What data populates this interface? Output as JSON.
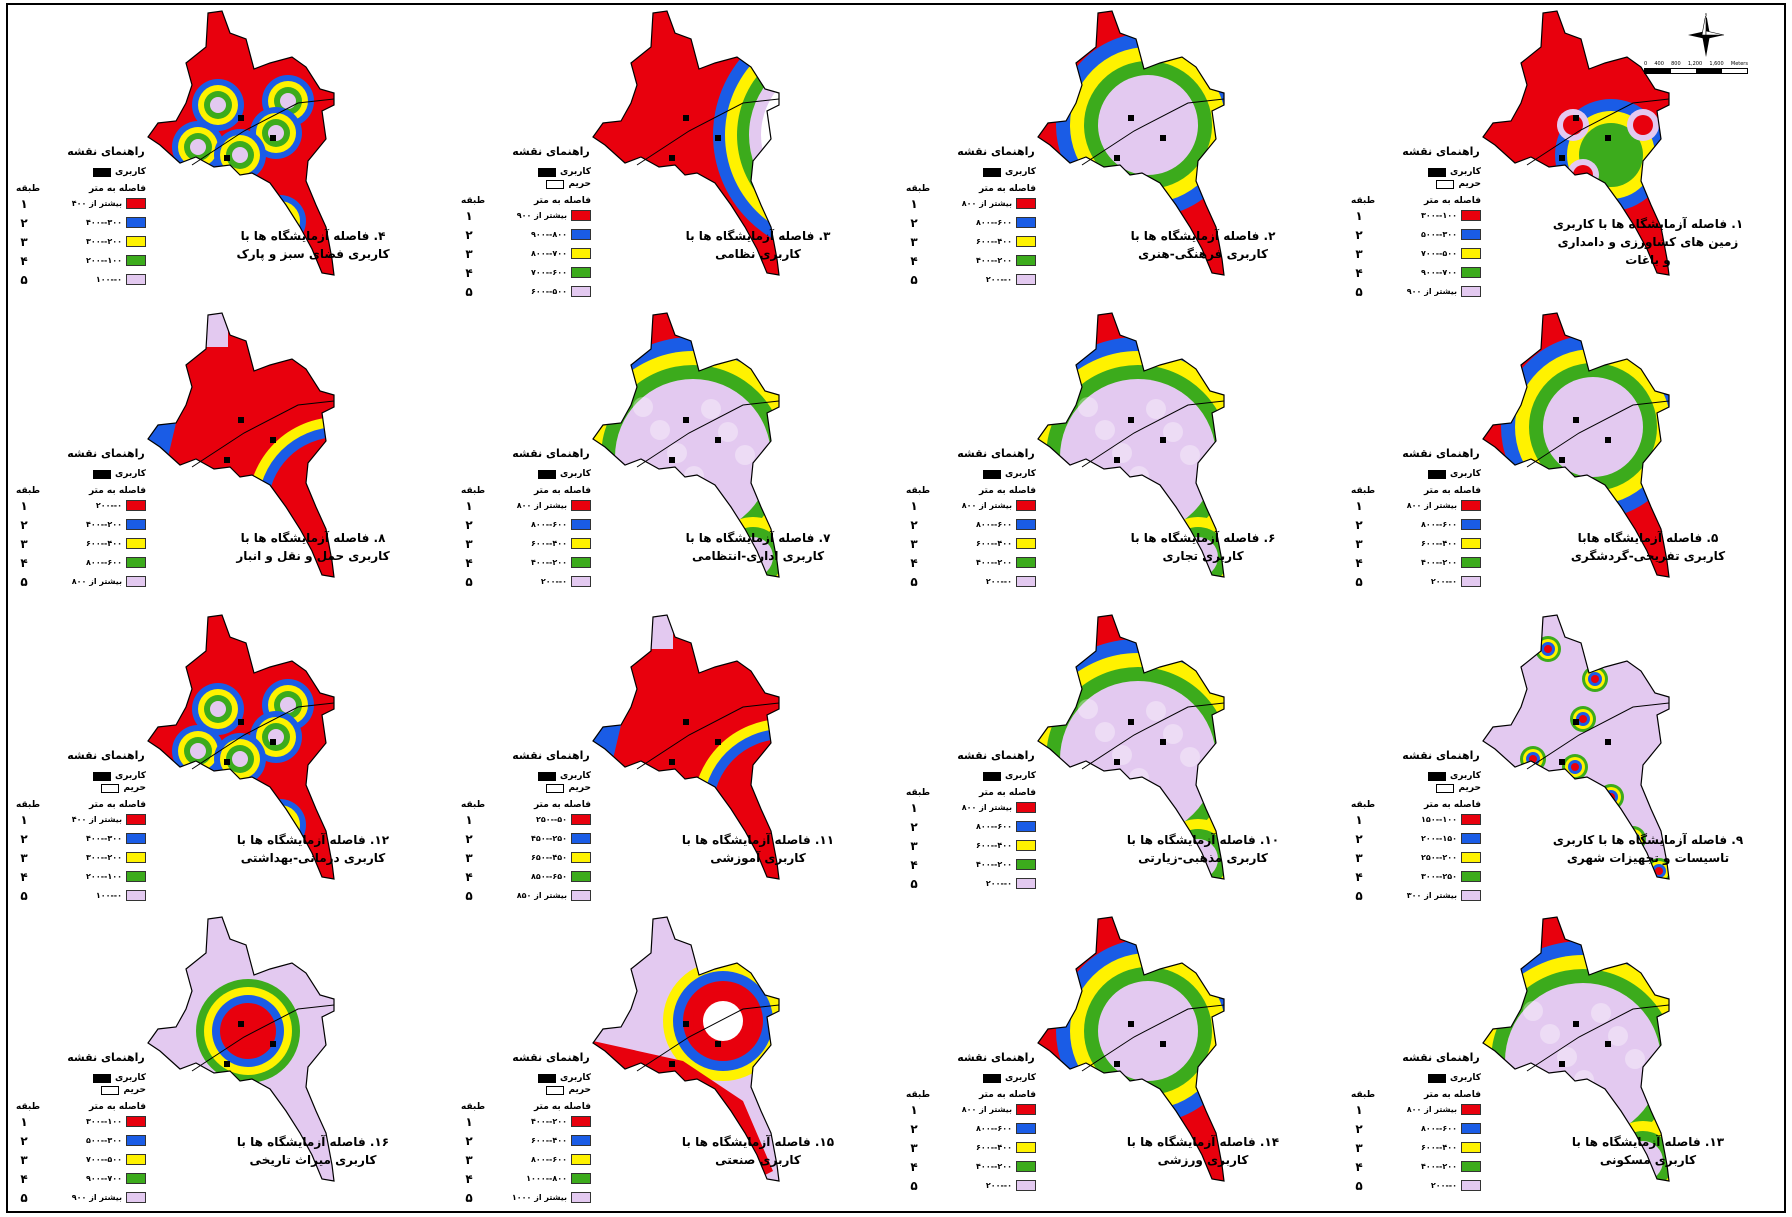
{
  "colors": {
    "class1": "#e8000d",
    "class2": "#1a5ce6",
    "class3": "#fff200",
    "class4": "#3cab1c",
    "class5": "#e3c9f0",
    "landuse": "#000000"
  },
  "legend_common": {
    "title": "راهنمای نقشه",
    "landuse_label": "کاربری",
    "buffer_label": "حریم",
    "distance_header": "فاصله به متر",
    "class_header": "طبقه",
    "class_numbers": [
      "۱",
      "۲",
      "۳",
      "۴",
      "۵"
    ]
  },
  "scale_bar": {
    "labels": [
      "0",
      "400",
      "800",
      "1,200",
      "1,600"
    ],
    "unit": "Meters"
  },
  "panels": [
    {
      "id": 1,
      "caption": [
        "۱. فاصله آزمایشگاه ها با کاربری",
        "زمین های کشاورزی و دامداری",
        "و باغات"
      ],
      "has_buffer": true,
      "ranges": [
        "۱۰۰--۳۰۰",
        "۳۰۰--۵۰۰",
        "۵۰۰--۷۰۰",
        "۷۰۰--۹۰۰",
        "بیشتر از ۹۰۰"
      ],
      "pattern": "far-red"
    },
    {
      "id": 2,
      "caption": [
        "۲. فاصله آزمایشگاه ها با",
        "کاربری فرهنگی-هنری"
      ],
      "has_buffer": false,
      "ranges": [
        "بیشتر از ۸۰۰",
        "۶۰۰--۸۰۰",
        "۴۰۰--۶۰۰",
        "۲۰۰--۴۰۰",
        "۰--۲۰۰"
      ],
      "pattern": "center-rings"
    },
    {
      "id": 3,
      "caption": [
        "۳. فاصله آزمایشگاه ها با",
        "کاربری نظامی"
      ],
      "has_buffer": true,
      "ranges": [
        "بیشتر از ۹۰۰",
        "۸۰۰--۹۰۰",
        "۷۰۰--۸۰۰",
        "۶۰۰--۷۰۰",
        "۵۰۰--۶۰۰"
      ],
      "pattern": "edge-rings"
    },
    {
      "id": 4,
      "caption": [
        "۴. فاصله آزمایشگاه ها با",
        "کاربری فضای سبز و پارک"
      ],
      "has_buffer": false,
      "ranges": [
        "بیشتر از ۴۰۰",
        "۳۰۰--۴۰۰",
        "۲۰۰--۳۰۰",
        "۱۰۰--۲۰۰",
        "۰--۱۰۰"
      ],
      "pattern": "multi-rings"
    },
    {
      "id": 5,
      "caption": [
        "۵. فاصله آزمایشگاه هابا",
        "کاربری تفریحی-گردشگری"
      ],
      "has_buffer": false,
      "ranges": [
        "بیشتر از ۸۰۰",
        "۶۰۰--۸۰۰",
        "۴۰۰--۶۰۰",
        "۲۰۰--۴۰۰",
        "۰--۲۰۰"
      ],
      "pattern": "center-rings"
    },
    {
      "id": 6,
      "caption": [
        "۶. فاصله آزمایشگاه ها با",
        "کاربری تجاری"
      ],
      "has_buffer": false,
      "ranges": [
        "بیشتر از ۸۰۰",
        "۶۰۰--۸۰۰",
        "۴۰۰--۶۰۰",
        "۲۰۰--۴۰۰",
        "۰--۲۰۰"
      ],
      "pattern": "mostly-pink"
    },
    {
      "id": 7,
      "caption": [
        "۷. فاصله آزمایشگاه ها با",
        "کاربری اداری-انتظامی"
      ],
      "has_buffer": false,
      "ranges": [
        "بیشتر از ۸۰۰",
        "۶۰۰--۸۰۰",
        "۴۰۰--۶۰۰",
        "۲۰۰--۴۰۰",
        "۰--۲۰۰"
      ],
      "pattern": "mostly-pink"
    },
    {
      "id": 8,
      "caption": [
        "۸. فاصله آزمایشگاه ها با",
        "کاربری حمل و نقل و انبار"
      ],
      "has_buffer": false,
      "ranges": [
        "۰--۲۰۰",
        "۲۰۰--۴۰۰",
        "۴۰۰--۶۰۰",
        "۶۰۰--۸۰۰",
        "بیشتر از ۸۰۰"
      ],
      "pattern": "mostly-red"
    },
    {
      "id": 9,
      "caption": [
        "۹. فاصله آزمایشگاه ها با کاربری",
        "تاسیسات و تجهیزات شهری"
      ],
      "has_buffer": true,
      "ranges": [
        "۱۰۰--۱۵۰",
        "۱۵۰--۲۰۰",
        "۲۰۰--۲۵۰",
        "۲۵۰--۳۰۰",
        "بیشتر از ۳۰۰"
      ],
      "pattern": "dots-rings"
    },
    {
      "id": 10,
      "caption": [
        "۱۰. فاصله آزمایشگاه ها با",
        "کاربری مذهبی-زیارتی"
      ],
      "has_buffer": false,
      "ranges": [
        "بیشتر از ۸۰۰",
        "۶۰۰--۸۰۰",
        "۴۰۰--۶۰۰",
        "۲۰۰--۴۰۰",
        "۰--۲۰۰"
      ],
      "pattern": "mostly-pink"
    },
    {
      "id": 11,
      "caption": [
        "۱۱. فاصله آزمایشگاه ها با",
        "کاربری آموزشی"
      ],
      "has_buffer": true,
      "ranges": [
        "۵۰--۲۵۰",
        "۲۵۰--۴۵۰",
        "۴۵۰--۶۵۰",
        "۶۵۰--۸۵۰",
        "بیشتر از ۸۵۰"
      ],
      "pattern": "mostly-red"
    },
    {
      "id": 12,
      "caption": [
        "۱۲. فاصله آزمایشگاه ها با",
        "کاربری درمانی-بهداشتی"
      ],
      "has_buffer": true,
      "ranges": [
        "بیشتر از ۴۰۰",
        "۳۰۰--۴۰۰",
        "۲۰۰--۳۰۰",
        "۱۰۰--۲۰۰",
        "۰--۱۰۰"
      ],
      "pattern": "multi-rings"
    },
    {
      "id": 13,
      "caption": [
        "۱۳. فاصله آزمایشگاه ها با",
        "کاربری مسکونی"
      ],
      "has_buffer": false,
      "ranges": [
        "بیشتر از ۸۰۰",
        "۶۰۰--۸۰۰",
        "۴۰۰--۶۰۰",
        "۲۰۰--۴۰۰",
        "۰--۲۰۰"
      ],
      "pattern": "mostly-pink"
    },
    {
      "id": 14,
      "caption": [
        "۱۴. فاصله آزمایشگاه ها با",
        "کاربری ورزشی"
      ],
      "has_buffer": false,
      "ranges": [
        "بیشتر از ۸۰۰",
        "۶۰۰--۸۰۰",
        "۴۰۰--۶۰۰",
        "۲۰۰--۴۰۰",
        "۰--۲۰۰"
      ],
      "pattern": "center-rings"
    },
    {
      "id": 15,
      "caption": [
        "۱۵. فاصله آزمایشگاه ها با",
        "کاربری صنعتی"
      ],
      "has_buffer": true,
      "ranges": [
        "۲۰۰--۴۰۰",
        "۴۰۰--۶۰۰",
        "۶۰۰--۸۰۰",
        "۸۰۰--۱۰۰۰",
        "بیشتر از ۱۰۰۰"
      ],
      "pattern": "industrial"
    },
    {
      "id": 16,
      "caption": [
        "۱۶. فاصله آزمایشگاه ها با",
        "کاربری میراث تاریخی"
      ],
      "has_buffer": true,
      "ranges": [
        "۱۰۰--۳۰۰",
        "۳۰۰--۵۰۰",
        "۵۰۰--۷۰۰",
        "۷۰۰--۹۰۰",
        "بیشتر از ۹۰۰"
      ],
      "pattern": "single-ring"
    }
  ]
}
